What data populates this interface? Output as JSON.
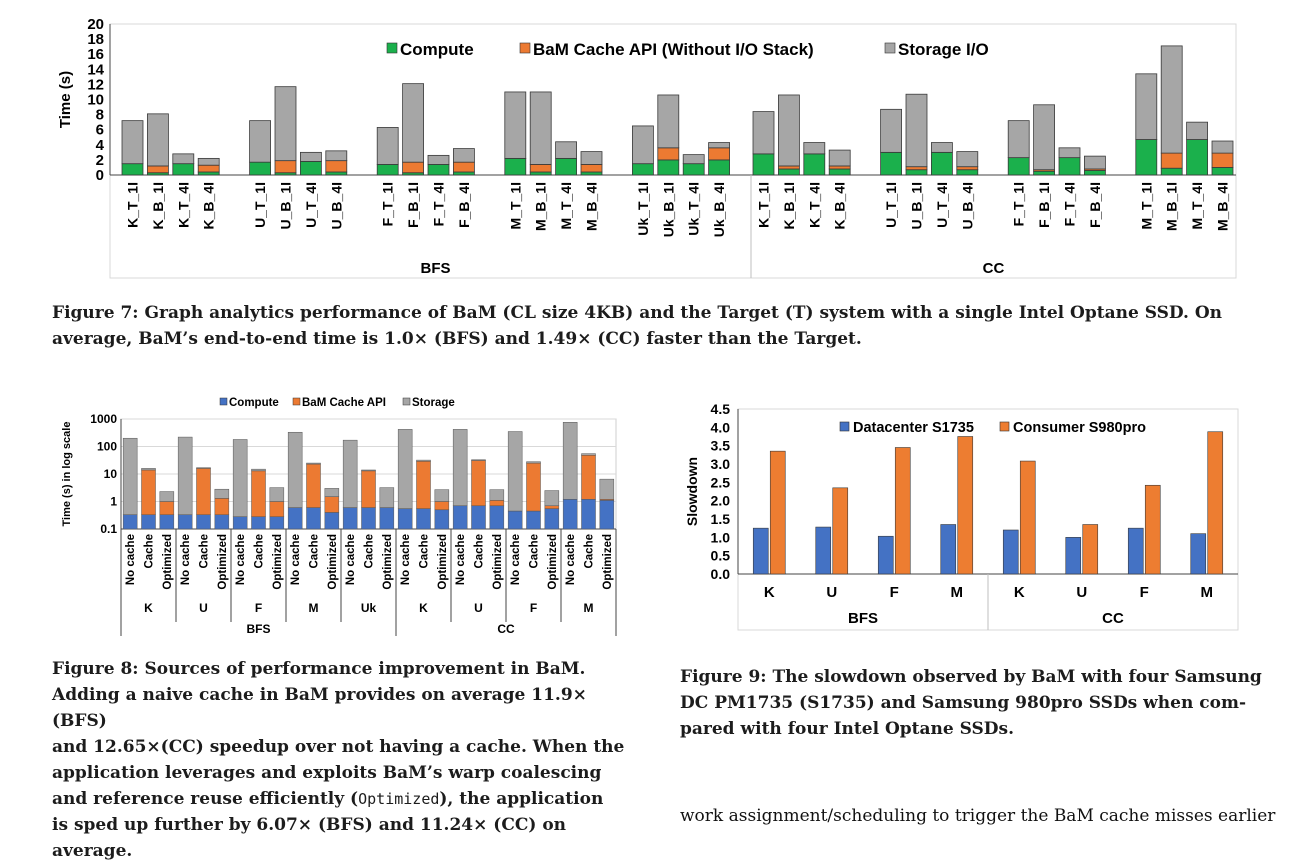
{
  "colors": {
    "compute": "#1bb04c",
    "cache": "#ec7a32",
    "storage": "#a6a6a6",
    "compute_blue": "#4472c4",
    "datacenter": "#4472c4",
    "consumer": "#ed7d31"
  },
  "chart_data": [
    {
      "type": "bar",
      "stacked": true,
      "ylabel": "Time (s)",
      "ylim": [
        0,
        20
      ],
      "yticks": [
        "0",
        "2",
        "4",
        "6",
        "8",
        "10",
        "12",
        "14",
        "16",
        "18",
        "20"
      ],
      "grid": false,
      "legend": [
        "Compute",
        "BaM Cache API (Without I/O Stack)",
        "Storage I/O"
      ],
      "legend_position": "top-center",
      "groups": [
        {
          "label": "BFS",
          "categories": [
            "K_T_1I",
            "K_B_1I",
            "K_T_4I",
            "K_B_4I",
            "U_T_1I",
            "U_B_1I",
            "U_T_4I",
            "U_B_4I",
            "F_T_1I",
            "F_B_1I",
            "F_T_4I",
            "F_B_4I",
            "M_T_1I",
            "M_B_1I",
            "M_T_4I",
            "M_B_4I",
            "Uk_T_1I",
            "Uk_B_1I",
            "Uk_T_4I",
            "Uk_B_4I"
          ]
        },
        {
          "label": "CC",
          "categories": [
            "K_T_1I",
            "K_B_1I",
            "K_T_4I",
            "K_B_4I",
            "U_T_1I",
            "U_B_1I",
            "U_T_4I",
            "U_B_4I",
            "F_T_1I",
            "F_B_1I",
            "F_T_4I",
            "F_B_4I",
            "M_T_1I",
            "M_B_1I",
            "M_T_4I",
            "M_B_4I"
          ]
        }
      ],
      "series": [
        {
          "name": "Compute",
          "values": [
            1.5,
            0.3,
            1.5,
            0.4,
            1.7,
            0.3,
            1.8,
            0.4,
            1.4,
            0.3,
            1.4,
            0.4,
            2.2,
            0.4,
            2.2,
            0.4,
            1.5,
            2.0,
            1.5,
            2.0,
            2.8,
            0.8,
            2.8,
            0.8,
            3.0,
            0.7,
            3.0,
            0.7,
            2.3,
            0.5,
            2.3,
            0.6,
            4.7,
            0.9,
            4.7,
            1.0
          ]
        },
        {
          "name": "BaM Cache API (Without I/O Stack)",
          "values": [
            0,
            0.9,
            0,
            0.9,
            0,
            1.6,
            0,
            1.5,
            0,
            1.4,
            0,
            1.3,
            0,
            1.0,
            0,
            1.0,
            0,
            1.6,
            0,
            1.6,
            0,
            0.4,
            0,
            0.4,
            0,
            0.4,
            0,
            0.4,
            0,
            0.2,
            0,
            0.2,
            0,
            2.0,
            0,
            1.9
          ]
        },
        {
          "name": "Storage I/O",
          "values": [
            5.7,
            6.9,
            1.3,
            0.9,
            5.5,
            9.8,
            1.2,
            1.3,
            4.9,
            10.4,
            1.2,
            1.8,
            8.8,
            9.6,
            2.2,
            1.7,
            5.0,
            7.0,
            1.2,
            0.7,
            5.6,
            9.4,
            1.5,
            2.1,
            5.7,
            9.6,
            1.3,
            2.0,
            4.9,
            8.6,
            1.3,
            1.7,
            8.7,
            14.2,
            2.3,
            1.6
          ]
        }
      ]
    },
    {
      "type": "bar",
      "stacked": true,
      "log_scale": true,
      "ylabel": "Time (s) in log scale",
      "ylim": [
        0.1,
        1000
      ],
      "yticks": [
        "0.1",
        "1",
        "10",
        "100",
        "1000"
      ],
      "grid": true,
      "legend": [
        "Compute",
        "BaM Cache API",
        "Storage"
      ],
      "legend_position": "top-center",
      "bar_labels": [
        "No cache",
        "Cache",
        "Optimized"
      ],
      "groups": [
        {
          "label": "BFS",
          "graphs": [
            "K",
            "U",
            "F",
            "M",
            "Uk"
          ]
        },
        {
          "label": "CC",
          "graphs": [
            "K",
            "U",
            "F",
            "M"
          ]
        }
      ],
      "totals": [
        200,
        16,
        2.3,
        220,
        17,
        2.8,
        180,
        15,
        3.2,
        330,
        25,
        3.0,
        170,
        14,
        3.2,
        420,
        32,
        2.7,
        420,
        33,
        2.7,
        350,
        28,
        2.5,
        760,
        55,
        6.5
      ],
      "compute": [
        0.33,
        0.33,
        0.33,
        0.33,
        0.33,
        0.33,
        0.28,
        0.28,
        0.28,
        0.6,
        0.6,
        0.4,
        0.6,
        0.6,
        0.6,
        0.55,
        0.55,
        0.5,
        0.7,
        0.7,
        0.7,
        0.45,
        0.45,
        0.55,
        1.2,
        1.2,
        1.1
      ],
      "cache_top": [
        0.33,
        14,
        1.0,
        0.33,
        16,
        1.3,
        0.28,
        13,
        1.0,
        0.6,
        23,
        1.5,
        0.6,
        13,
        0.6,
        0.55,
        29,
        1.0,
        0.7,
        31,
        1.1,
        0.45,
        25,
        0.7,
        1.2,
        48,
        1.2
      ]
    },
    {
      "type": "bar",
      "ylabel": "Slowdown",
      "ylim": [
        0,
        4.5
      ],
      "yticks": [
        "0.0",
        "0.5",
        "1.0",
        "1.5",
        "2.0",
        "2.5",
        "3.0",
        "3.5",
        "4.0",
        "4.5"
      ],
      "grid": false,
      "legend_position": "top-center",
      "groups": [
        {
          "label": "BFS",
          "categories": [
            "K",
            "U",
            "F",
            "M"
          ]
        },
        {
          "label": "CC",
          "categories": [
            "K",
            "U",
            "F",
            "M"
          ]
        }
      ],
      "series": [
        {
          "name": "Datacenter S1735",
          "values": [
            1.25,
            1.28,
            1.03,
            1.35,
            1.2,
            1.0,
            1.25,
            1.1
          ]
        },
        {
          "name": "Consumer S980pro",
          "values": [
            3.35,
            2.35,
            3.45,
            3.75,
            3.08,
            1.35,
            2.42,
            3.88
          ]
        }
      ]
    }
  ],
  "captions": {
    "fig7_line1": "Figure 7: Graph analytics performance of BaM (CL size 4KB) and the Target (T) system with a single Intel Optane SSD. On",
    "fig7_line2": "average, BaM’s end-to-end time is 1.0× (BFS) and 1.49× (CC) faster than the Target.",
    "fig8_line1": "Figure 8: Sources of performance improvement in BaM.",
    "fig8_line2": "Adding a naive cache in BaM provides on average 11.9× (BFS)",
    "fig8_line3": "and 12.65×(CC) speedup over not having a cache. When the",
    "fig8_line4": "application leverages and exploits BaM’s warp coalescing",
    "fig8_line5a": "and reference reuse efficiently (",
    "fig8_line5_code": "Optimized",
    "fig8_line5b": "), the application",
    "fig8_line6": "is sped up further by 6.07× (BFS) and 11.24× (CC) on average.",
    "fig9_line1": "Figure 9: The slowdown observed by BaM with four Samsung",
    "fig9_line2": "DC PM1735 (S1735) and Samsung 980pro SSDs when com-",
    "fig9_line3": "pared with four Intel Optane SSDs."
  },
  "body_text": "work assignment/scheduling to trigger the BaM cache misses earlier"
}
